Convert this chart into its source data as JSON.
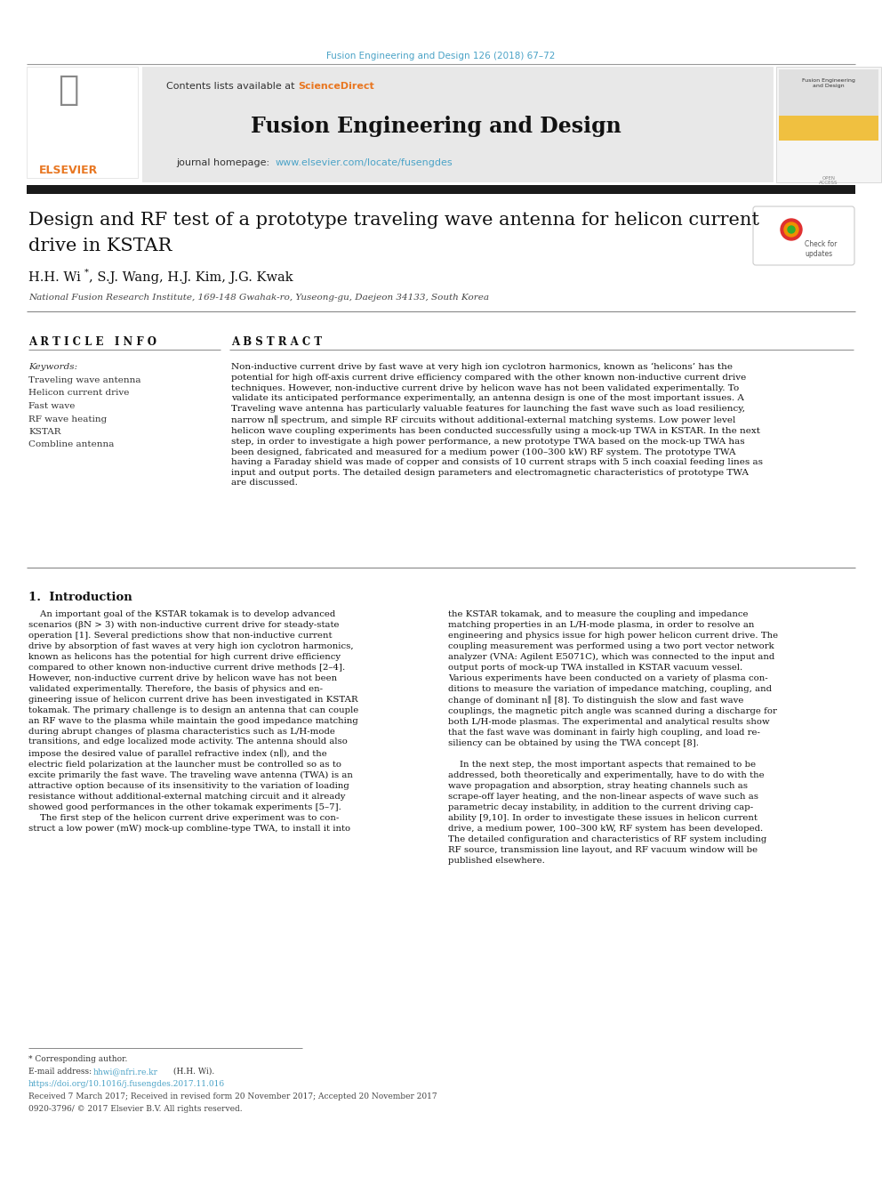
{
  "page_width": 9.92,
  "page_height": 13.23,
  "dpi": 100,
  "bg_color": "#ffffff",
  "top_journal_ref": "Fusion Engineering and Design 126 (2018) 67–72",
  "top_journal_ref_color": "#4ba3c7",
  "header_bg": "#e8e8e8",
  "header_sciencedirect_color": "#e87722",
  "header_journal_title": "Fusion Engineering and Design",
  "header_url": "www.elsevier.com/locate/fusengdes",
  "header_url_color": "#4ba3c7",
  "thick_bar_color": "#1a1a1a",
  "article_title_line1": "Design and RF test of a prototype traveling wave antenna for helicon current",
  "article_title_line2": "drive in KSTAR",
  "authors": "H.H. Wi",
  "authors_rest": ", S.J. Wang, H.J. Kim, J.G. Kwak",
  "affiliation": "National Fusion Research Institute, 169-148 Gwahak-ro, Yuseong-gu, Daejeon 34133, South Korea",
  "article_info_header": "A R T I C L E   I N F O",
  "abstract_header": "A B S T R A C T",
  "keywords_label": "Keywords:",
  "keywords": [
    "Traveling wave antenna",
    "Helicon current drive",
    "Fast wave",
    "RF wave heating",
    "KSTAR",
    "Combline antenna"
  ],
  "abstract_text": "Non-inductive current drive by fast wave at very high ion cyclotron harmonics, known as ‘helicons’ has the\npotential for high off-axis current drive efficiency compared with the other known non-inductive current drive\ntechniques. However, non-inductive current drive by helicon wave has not been validated experimentally. To\nvalidate its anticipated performance experimentally, an antenna design is one of the most important issues. A\nTraveling wave antenna has particularly valuable features for launching the fast wave such as load resiliency,\nnarrow n∥ spectrum, and simple RF circuits without additional-external matching systems. Low power level\nhelicon wave coupling experiments has been conducted successfully using a mock-up TWA in KSTAR. In the next\nstep, in order to investigate a high power performance, a new prototype TWA based on the mock-up TWA has\nbeen designed, fabricated and measured for a medium power (100–300 kW) RF system. The prototype TWA\nhaving a Faraday shield was made of copper and consists of 10 current straps with 5 inch coaxial feeding lines as\ninput and output ports. The detailed design parameters and electromagnetic characteristics of prototype TWA\nare discussed.",
  "intro_header": "1.  Introduction",
  "intro_col1_para1": "    An important goal of the KSTAR tokamak is to develop advanced\nscenarios (βN > 3) with non-inductive current drive for steady-state\noperation [1]. Several predictions show that non-inductive current\ndrive by absorption of fast waves at very high ion cyclotron harmonics,\nknown as helicons has the potential for high current drive efficiency\ncompared to other known non-inductive current drive methods [2–4].\nHowever, non-inductive current drive by helicon wave has not been\nvalidated experimentally. Therefore, the basis of physics and en-\ngineering issue of helicon current drive has been investigated in KSTAR\ntokamak. The primary challenge is to design an antenna that can couple\nan RF wave to the plasma while maintain the good impedance matching\nduring abrupt changes of plasma characteristics such as L/H-mode\ntransitions, and edge localized mode activity. The antenna should also\nimpose the desired value of parallel refractive index (n∥), and the\nelectric field polarization at the launcher must be controlled so as to\nexcite primarily the fast wave. The traveling wave antenna (TWA) is an\nattractive option because of its insensitivity to the variation of loading\nresistance without additional-external matching circuit and it already\nshowed good performances in the other tokamak experiments [5–7].",
  "intro_col1_para2": "    The first step of the helicon current drive experiment was to con-\nstruct a low power (mW) mock-up combline-type TWA, to install it into",
  "intro_col2_para1": "the KSTAR tokamak, and to measure the coupling and impedance\nmatching properties in an L/H-mode plasma, in order to resolve an\nengineering and physics issue for high power helicon current drive. The\ncoupling measurement was performed using a two port vector network\nanalyzer (VNA: Agilent E5071C), which was connected to the input and\noutput ports of mock-up TWA installed in KSTAR vacuum vessel.\nVarious experiments have been conducted on a variety of plasma con-\nditions to measure the variation of impedance matching, coupling, and\nchange of dominant n∥ [8]. To distinguish the slow and fast wave\ncouplings, the magnetic pitch angle was scanned during a discharge for\nboth L/H-mode plasmas. The experimental and analytical results show\nthat the fast wave was dominant in fairly high coupling, and load re-\nsiliency can be obtained by using the TWA concept [8].",
  "intro_col2_para2": "    In the next step, the most important aspects that remained to be\naddressed, both theoretically and experimentally, have to do with the\nwave propagation and absorption, stray heating channels such as\nscrape-off layer heating, and the non-linear aspects of wave such as\nparametric decay instability, in addition to the current driving cap-\nability [9,10]. In order to investigate these issues in helicon current\ndrive, a medium power, 100–300 kW, RF system has been developed.\nThe detailed configuration and characteristics of RF system including\nRF source, transmission line layout, and RF vacuum window will be\npublished elsewhere.",
  "footnote_star": "* Corresponding author.",
  "footnote_email_label": "E-mail address:",
  "footnote_email": "hhwi@nfri.re.kr",
  "footnote_email_color": "#4ba3c7",
  "footnote_email_suffix": " (H.H. Wi).",
  "doi_line": "https://doi.org/10.1016/j.fusengdes.2017.11.016",
  "doi_color": "#4ba3c7",
  "received_line": "Received 7 March 2017; Received in revised form 20 November 2017; Accepted 20 November 2017",
  "copyright_line": "0920-3796/ © 2017 Elsevier B.V. All rights reserved."
}
